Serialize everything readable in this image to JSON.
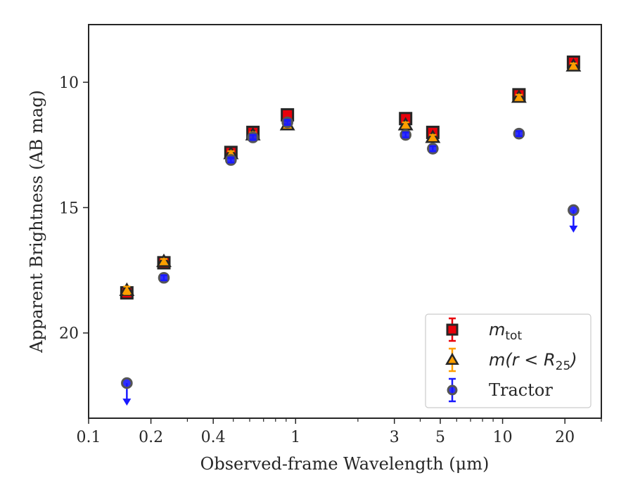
{
  "chart_data": {
    "type": "scatter",
    "title": "",
    "xlabel": "Observed-frame Wavelength (μm)",
    "ylabel": "Apparent Brightness (AB mag)",
    "xscale": "log",
    "xlim": [
      0.1,
      30
    ],
    "ylim": [
      23.4,
      7.7
    ],
    "y_inverted": true,
    "x_ticks": [
      0.1,
      0.2,
      0.4,
      1,
      3,
      5,
      10,
      20
    ],
    "x_tick_labels": [
      "0.1",
      "0.2",
      "0.4",
      "1",
      "3",
      "5",
      "10",
      "20"
    ],
    "y_ticks": [
      10,
      15,
      20
    ],
    "y_tick_labels": [
      "10",
      "15",
      "20"
    ],
    "grid": false,
    "legend_position": "lower-right",
    "series": [
      {
        "name": "m_tot",
        "legend": {
          "main": "m",
          "sub": "tot",
          "rest": ""
        },
        "marker": "square",
        "color": "#e8000b",
        "edge": "#262626",
        "points": [
          {
            "x": 0.153,
            "y": 18.4,
            "err": 0.15
          },
          {
            "x": 0.231,
            "y": 17.2,
            "err": 0.1
          },
          {
            "x": 0.487,
            "y": 12.8,
            "err": 0.1
          },
          {
            "x": 0.622,
            "y": 12.0,
            "err": 0.1
          },
          {
            "x": 0.913,
            "y": 11.3,
            "err": 0.1
          },
          {
            "x": 3.4,
            "y": 11.45,
            "err": 0.1
          },
          {
            "x": 4.6,
            "y": 12.0,
            "err": 0.1
          },
          {
            "x": 12.0,
            "y": 10.5,
            "err": 0.1
          },
          {
            "x": 22.0,
            "y": 9.2,
            "err": 0.1
          }
        ]
      },
      {
        "name": "m(r < R_25)",
        "legend": {
          "main": "m(r < R",
          "sub": "25",
          "rest": ")"
        },
        "marker": "triangle",
        "color": "#ff9f00",
        "edge": "#262626",
        "points": [
          {
            "x": 0.153,
            "y": 18.3,
            "err": 0.15
          },
          {
            "x": 0.231,
            "y": 17.15,
            "err": 0.1
          },
          {
            "x": 0.487,
            "y": 12.85,
            "err": 0.1
          },
          {
            "x": 0.622,
            "y": 12.1,
            "err": 0.1
          },
          {
            "x": 0.913,
            "y": 11.7,
            "err": 0.1
          },
          {
            "x": 3.4,
            "y": 11.7,
            "err": 0.1
          },
          {
            "x": 4.6,
            "y": 12.2,
            "err": 0.1
          },
          {
            "x": 12.0,
            "y": 10.6,
            "err": 0.1
          },
          {
            "x": 22.0,
            "y": 9.35,
            "err": 0.1
          }
        ]
      },
      {
        "name": "Tractor",
        "legend": {
          "main": "Tractor",
          "sub": "",
          "rest": ""
        },
        "marker": "circle",
        "color": "#1a1aff",
        "edge": "#555555",
        "points": [
          {
            "x": 0.153,
            "y": 22.0,
            "err": 0,
            "upper_limit": true
          },
          {
            "x": 0.231,
            "y": 17.8,
            "err": 0.1
          },
          {
            "x": 0.487,
            "y": 13.1,
            "err": 0.1
          },
          {
            "x": 0.622,
            "y": 12.2,
            "err": 0.1
          },
          {
            "x": 0.913,
            "y": 11.6,
            "err": 0.1
          },
          {
            "x": 3.4,
            "y": 12.1,
            "err": 0.1
          },
          {
            "x": 4.6,
            "y": 12.65,
            "err": 0.1
          },
          {
            "x": 12.0,
            "y": 12.05,
            "err": 0.1
          },
          {
            "x": 22.0,
            "y": 15.1,
            "err": 0,
            "upper_limit": true
          }
        ]
      }
    ]
  }
}
